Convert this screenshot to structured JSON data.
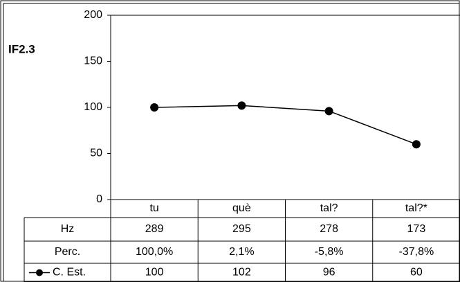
{
  "chart_data": {
    "type": "line",
    "title": "IF2.3",
    "categories": [
      "tu",
      "què",
      "tal?",
      "tal?*"
    ],
    "series": [
      {
        "name": "C. Est.",
        "color": "#000000",
        "values": [
          100,
          102,
          96,
          60
        ]
      }
    ],
    "ylim": [
      0,
      200
    ],
    "yticks": [
      0,
      50,
      100,
      150,
      200
    ],
    "table": [
      {
        "name": "Hz",
        "values": [
          289,
          295,
          278,
          173
        ]
      },
      {
        "name": "Perc.",
        "values": [
          100.0,
          2.1,
          -5.8,
          -37.8
        ],
        "value_labels": [
          "100,0%",
          "2,1%",
          "-5,8%",
          "-37,8%"
        ]
      }
    ]
  }
}
